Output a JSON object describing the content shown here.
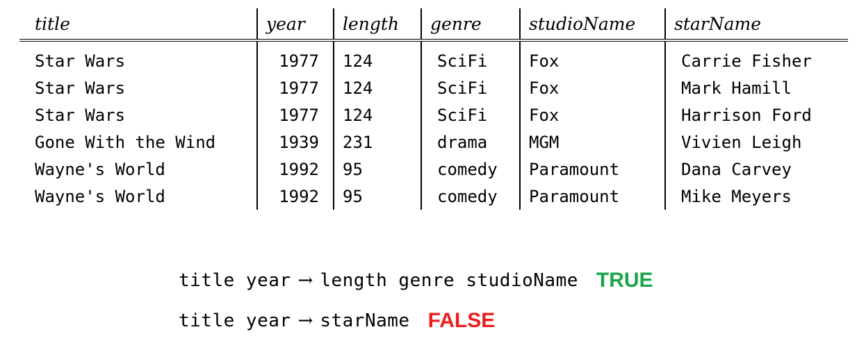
{
  "table": {
    "columns": [
      "title",
      "year",
      "length",
      "genre",
      "studioName",
      "starName"
    ],
    "rows": [
      [
        "Star Wars",
        "1977",
        "124",
        "SciFi",
        "Fox",
        "Carrie Fisher"
      ],
      [
        "Star Wars",
        "1977",
        "124",
        "SciFi",
        "Fox",
        "Mark Hamill"
      ],
      [
        "Star Wars",
        "1977",
        "124",
        "SciFi",
        "Fox",
        "Harrison Ford"
      ],
      [
        "Gone With the Wind",
        "1939",
        "231",
        "drama",
        "MGM",
        "Vivien Leigh"
      ],
      [
        "Wayne's World",
        "1992",
        "95",
        "comedy",
        "Paramount",
        "Dana Carvey"
      ],
      [
        "Wayne's World",
        "1992",
        "95",
        "comedy",
        "Paramount",
        "Mike Meyers"
      ]
    ]
  },
  "dependencies": [
    {
      "lhs": "title year",
      "arrow": "→",
      "rhs": "length genre studioName",
      "verdict": "TRUE",
      "verdict_color": "#1aa54a"
    },
    {
      "lhs": "title year",
      "arrow": "→",
      "rhs": "starName",
      "verdict": "FALSE",
      "verdict_color": "#ee1c1c"
    }
  ]
}
